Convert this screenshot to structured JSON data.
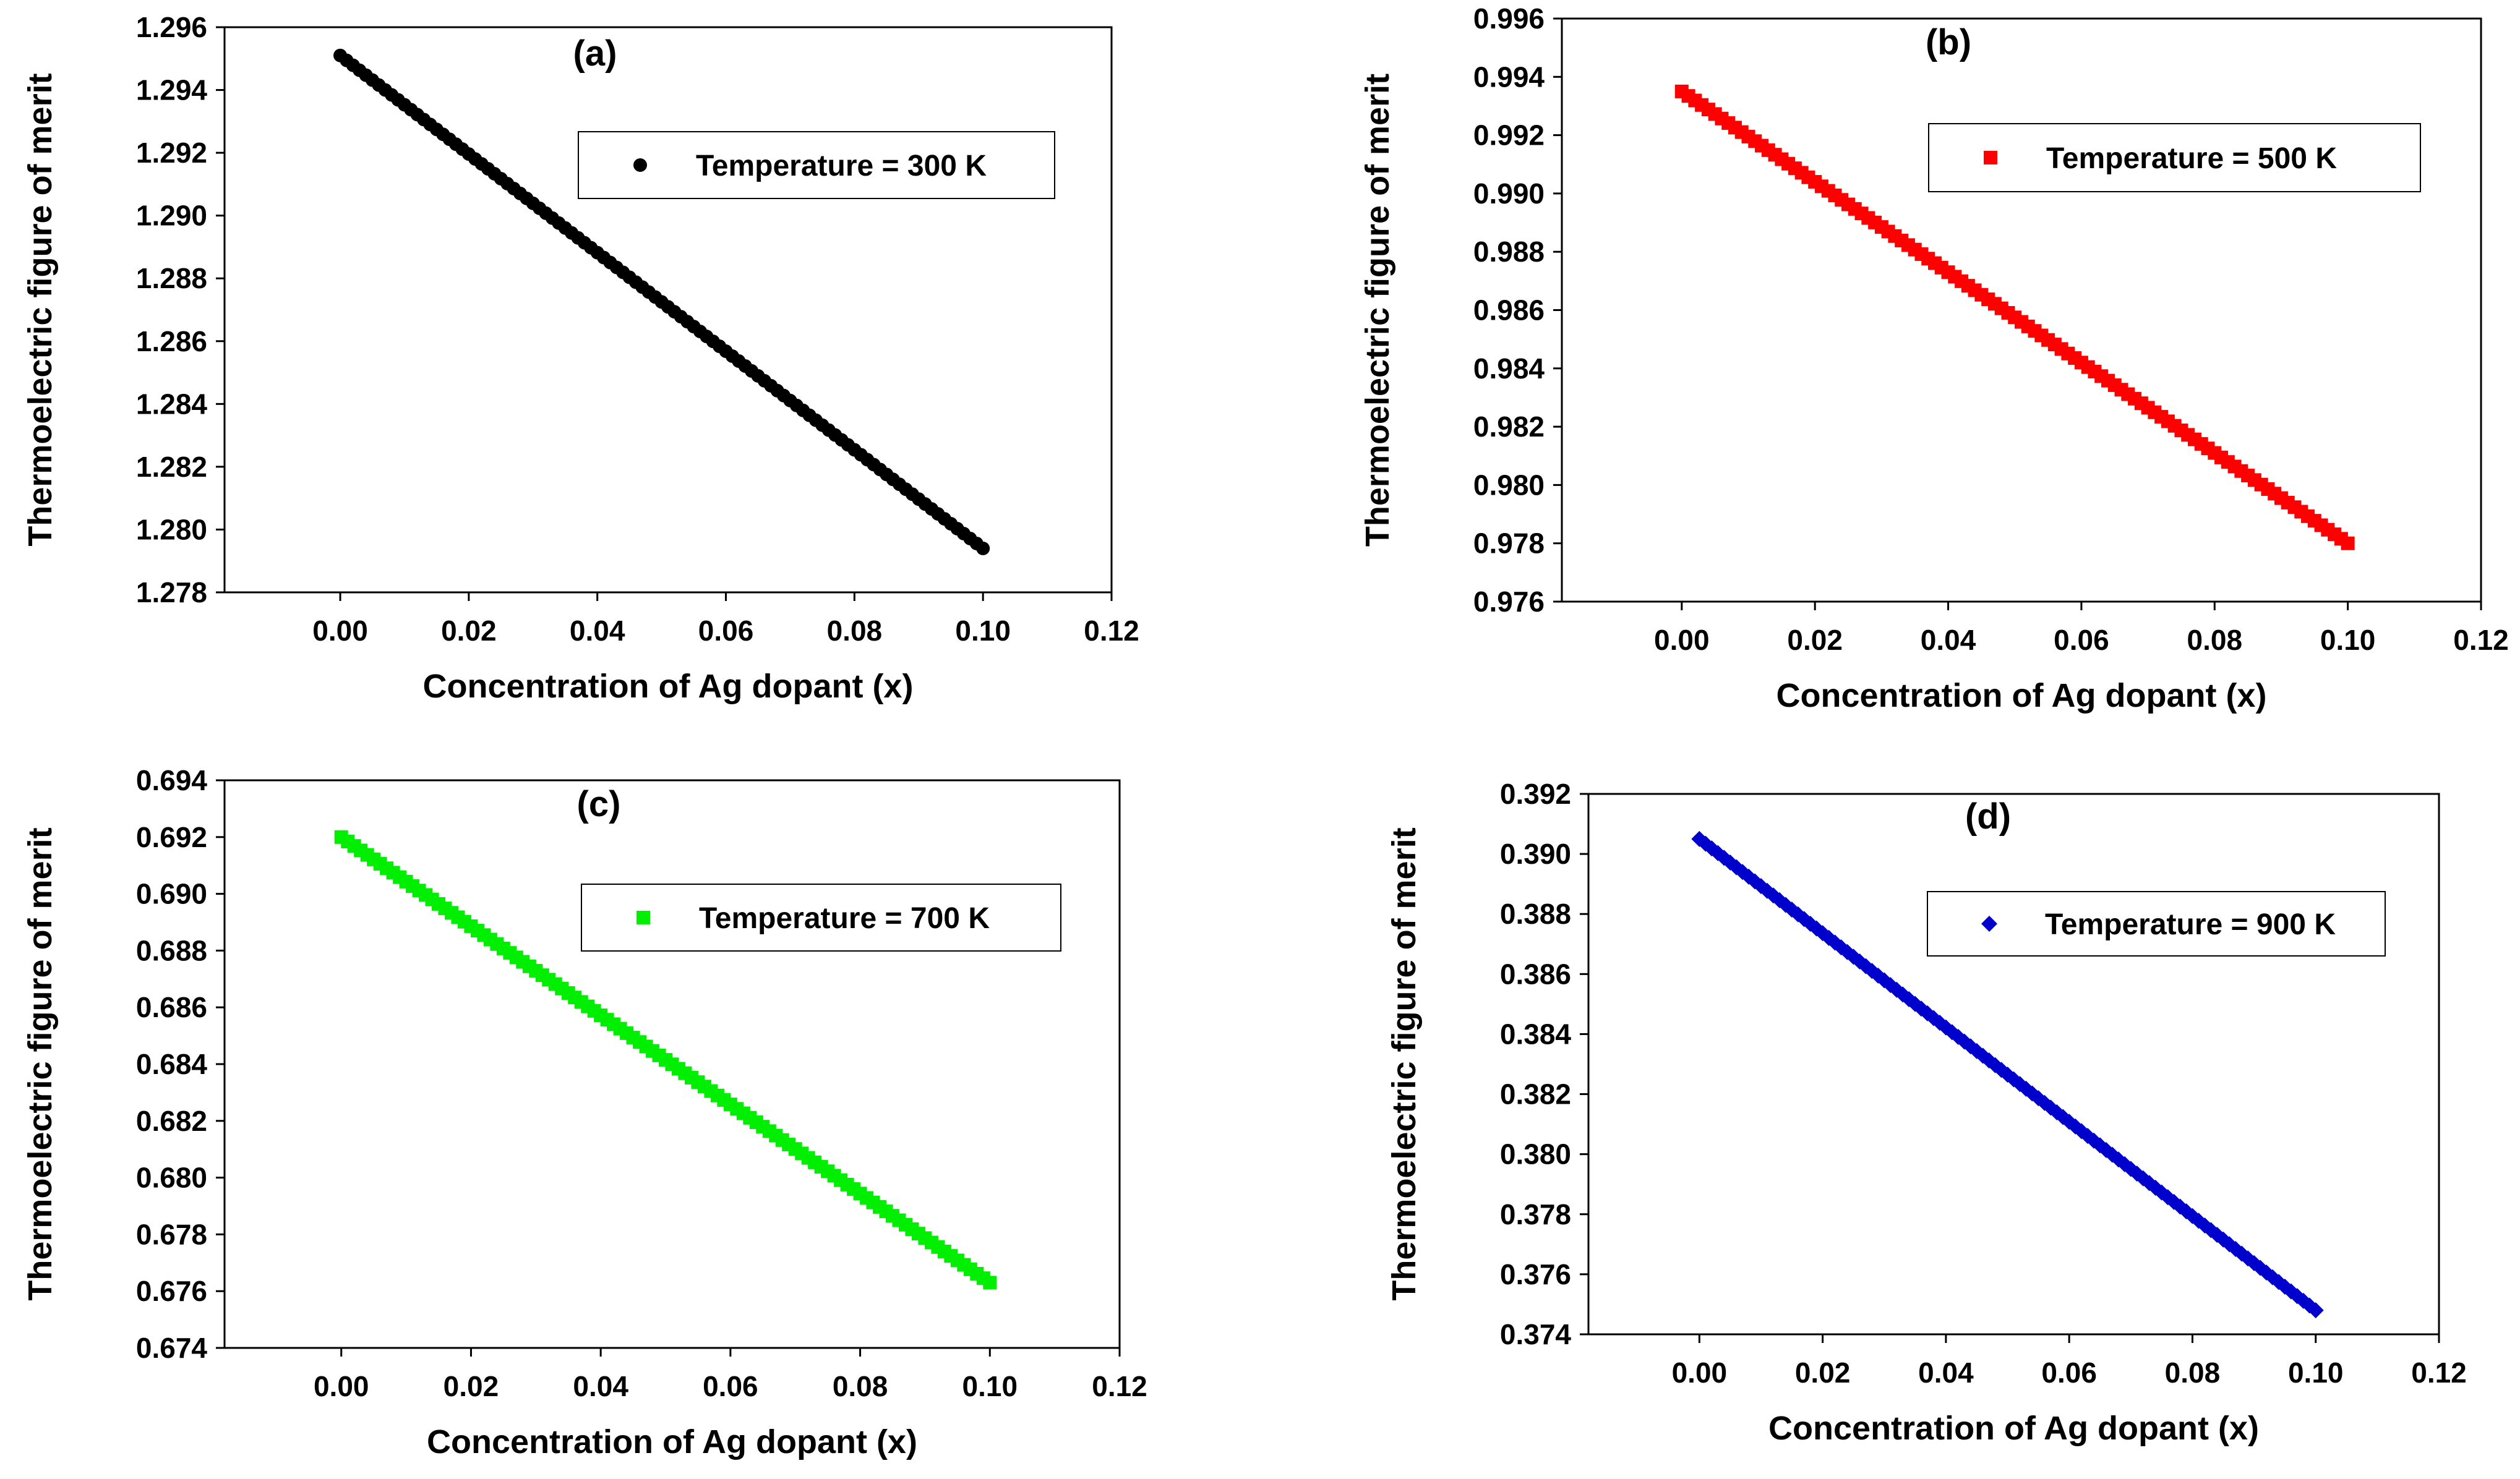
{
  "chart_data": [
    {
      "panel": "(a)",
      "type": "scatter",
      "xlabel": "Concentration of Ag dopant (x)",
      "ylabel": "Thermoelectric figure of merit",
      "xlim": [
        -0.018,
        0.12
      ],
      "ylim": [
        1.278,
        1.296
      ],
      "xticks": [
        "0.00",
        "0.02",
        "0.04",
        "0.06",
        "0.08",
        "0.10",
        "0.12"
      ],
      "yticks": [
        "1.278",
        "1.280",
        "1.282",
        "1.284",
        "1.286",
        "1.288",
        "1.290",
        "1.292",
        "1.294",
        "1.296"
      ],
      "legend": "Temperature = 300 K",
      "marker": "circle",
      "color": "#000000",
      "series": [
        {
          "name": "Temperature = 300 K",
          "x_start": 0.0,
          "x_end": 0.1,
          "x_step": 0.001,
          "y_start": 1.2951,
          "y_end": 1.2794
        }
      ]
    },
    {
      "panel": "(b)",
      "type": "scatter",
      "xlabel": "Concentration of Ag dopant (x)",
      "ylabel": "Thermoelectric figure of merit",
      "xlim": [
        -0.018,
        0.12
      ],
      "ylim": [
        0.976,
        0.996
      ],
      "xticks": [
        "0.00",
        "0.02",
        "0.04",
        "0.06",
        "0.08",
        "0.10",
        "0.12"
      ],
      "yticks": [
        "0.976",
        "0.978",
        "0.980",
        "0.982",
        "0.984",
        "0.986",
        "0.988",
        "0.990",
        "0.992",
        "0.994",
        "0.996"
      ],
      "legend": "Temperature = 500 K",
      "marker": "square",
      "color": "#ff0000",
      "series": [
        {
          "name": "Temperature = 500 K",
          "x_start": 0.0,
          "x_end": 0.1,
          "x_step": 0.001,
          "y_start": 0.9935,
          "y_end": 0.978
        }
      ]
    },
    {
      "panel": "(c)",
      "type": "scatter",
      "xlabel": "Concentration of Ag dopant (x)",
      "ylabel": "Thermoelectric figure of merit",
      "xlim": [
        -0.018,
        0.12
      ],
      "ylim": [
        0.674,
        0.694
      ],
      "xticks": [
        "0.00",
        "0.02",
        "0.04",
        "0.06",
        "0.08",
        "0.10",
        "0.12"
      ],
      "yticks": [
        "0.674",
        "0.676",
        "0.678",
        "0.680",
        "0.682",
        "0.684",
        "0.686",
        "0.688",
        "0.690",
        "0.692",
        "0.694"
      ],
      "legend": "Temperature = 700 K",
      "marker": "square",
      "color": "#00ee00",
      "series": [
        {
          "name": "Temperature = 700 K",
          "x_start": 0.0,
          "x_end": 0.1,
          "x_step": 0.001,
          "y_start": 0.692,
          "y_end": 0.6763
        }
      ]
    },
    {
      "panel": "(d)",
      "type": "scatter",
      "xlabel": "Concentration of Ag dopant (x)",
      "ylabel": "Thermoelectric figure of merit",
      "xlim": [
        -0.018,
        0.12
      ],
      "ylim": [
        0.374,
        0.392
      ],
      "xticks": [
        "0.00",
        "0.02",
        "0.04",
        "0.06",
        "0.08",
        "0.10",
        "0.12"
      ],
      "yticks": [
        "0.374",
        "0.376",
        "0.378",
        "0.380",
        "0.382",
        "0.384",
        "0.386",
        "0.388",
        "0.390",
        "0.392"
      ],
      "legend": "Temperature = 900 K",
      "marker": "diamond",
      "color": "#0000cc",
      "series": [
        {
          "name": "Temperature = 900 K",
          "x_start": 0.0,
          "x_end": 0.1,
          "x_step": 0.001,
          "y_start": 0.3905,
          "y_end": 0.3748
        }
      ]
    }
  ]
}
